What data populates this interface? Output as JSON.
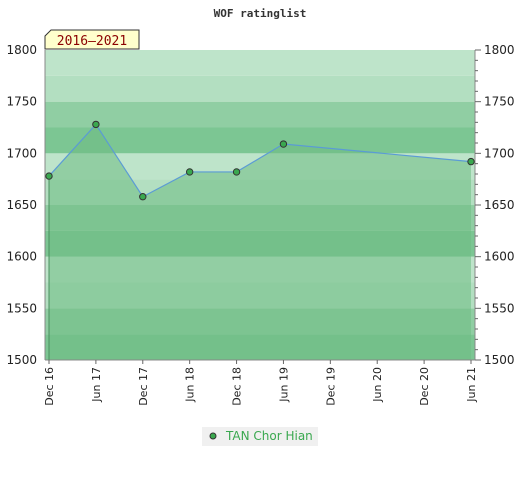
{
  "chart_data": {
    "type": "area",
    "title": "WOF ratinglist",
    "badge": "2016–2021",
    "x_categories": [
      "Dec 16",
      "Jun 17",
      "Dec 17",
      "Jun 18",
      "Dec 18",
      "Jun 19",
      "Dec 19",
      "Jun 20",
      "Dec 20",
      "Jun 21"
    ],
    "ylim": [
      1500,
      1800
    ],
    "yticks": [
      1500,
      1550,
      1600,
      1650,
      1700,
      1750,
      1800
    ],
    "series": [
      {
        "name": "TAN Chor Hian",
        "points": [
          {
            "x": "Dec 16",
            "y": 1678
          },
          {
            "x": "Jun 17",
            "y": 1728
          },
          {
            "x": "Dec 17",
            "y": 1658
          },
          {
            "x": "Jun 18",
            "y": 1682
          },
          {
            "x": "Dec 18",
            "y": 1682
          },
          {
            "x": "Jun 19",
            "y": 1709
          },
          {
            "x": "Jun 21",
            "y": 1692
          }
        ]
      }
    ],
    "grid": true,
    "legend_position": "bottom",
    "colors": {
      "line": "#5b9bd5",
      "marker": "#3aa84f",
      "band_dark": "#7cc693",
      "band_light": "#b3dfc1",
      "area": "#6dbb83",
      "badge_bg": "#ffffcc",
      "badge_text": "#8b0000",
      "legend_text": "#3aa84f"
    }
  }
}
